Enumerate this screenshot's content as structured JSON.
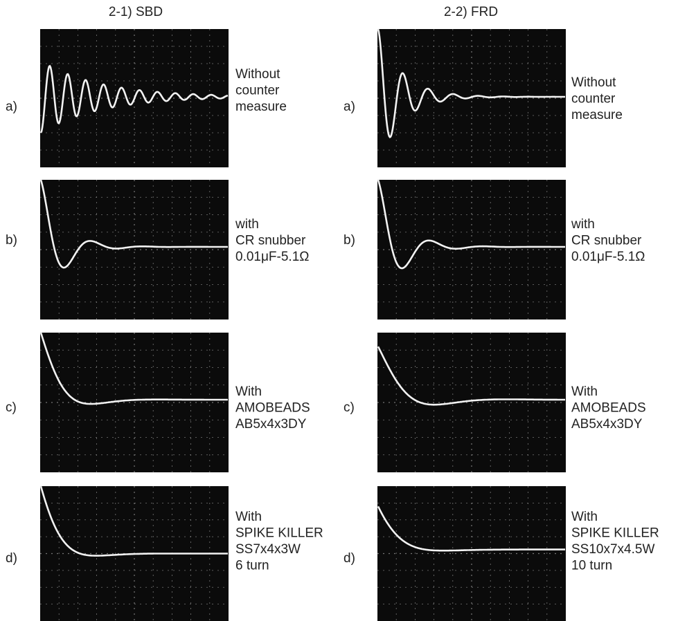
{
  "columns": [
    {
      "title": "2-1) SBD",
      "rows": [
        {
          "label": "a)",
          "caption": [
            "Without",
            "counter",
            "measure"
          ]
        },
        {
          "label": "b)",
          "caption": [
            "with",
            "CR snubber",
            "0.01μF-5.1Ω"
          ]
        },
        {
          "label": "c)",
          "caption": [
            "With",
            "AMOBEADS",
            "AB5x4x3DY"
          ]
        },
        {
          "label": "d)",
          "caption": [
            "With",
            "SPIKE KILLER",
            "SS7x4x3W",
            "6 turn"
          ]
        }
      ]
    },
    {
      "title": "2-2) FRD",
      "rows": [
        {
          "label": "a)",
          "caption": [
            "Without",
            "counter",
            "measure"
          ]
        },
        {
          "label": "b)",
          "caption": [
            "with",
            "CR snubber",
            "0.01μF-5.1Ω"
          ]
        },
        {
          "label": "c)",
          "caption": [
            "With",
            "AMOBEADS",
            "AB5x4x3DY"
          ]
        },
        {
          "label": "d)",
          "caption": [
            "With",
            "SPIKE KILLER",
            "SS10x7x4.5W",
            "10 turn"
          ]
        }
      ]
    }
  ]
}
